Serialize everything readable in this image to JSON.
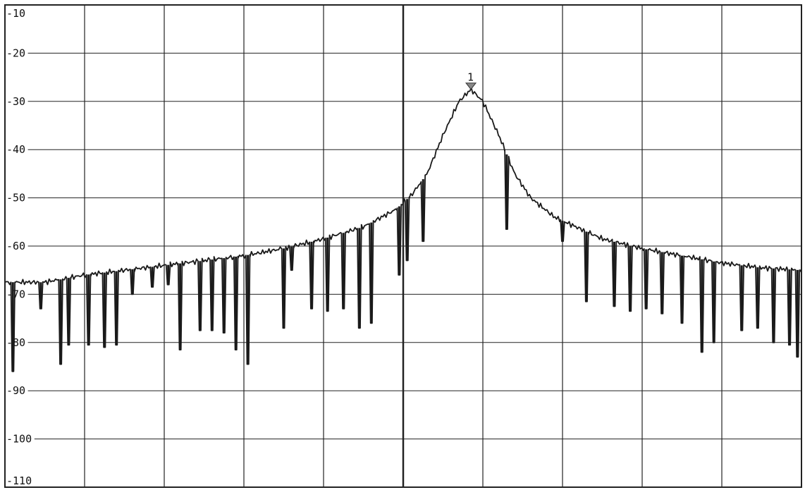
{
  "chart_data": {
    "type": "line",
    "title": "",
    "xlabel": "",
    "ylabel": "",
    "ylim": [
      -110,
      -10
    ],
    "yticks": [
      "-10",
      "-20",
      "-30",
      "-40",
      "-50",
      "-60",
      "-70",
      "-80",
      "-90",
      "-100",
      "-110"
    ],
    "x_divisions": 10,
    "grid": true,
    "colors": {
      "trace": "#1a1a1a",
      "grid": "#222222",
      "marker": "#888888",
      "background": "#ffffff"
    },
    "marker": {
      "label": "1",
      "x": 5.85,
      "y": -27.5
    },
    "trace_baseline": [
      [
        0.0,
        -67.5
      ],
      [
        0.5,
        -67.5
      ],
      [
        1.0,
        -66.0
      ],
      [
        1.5,
        -65.0
      ],
      [
        2.0,
        -64.0
      ],
      [
        2.5,
        -63.0
      ],
      [
        3.0,
        -62.0
      ],
      [
        3.5,
        -60.5
      ],
      [
        4.0,
        -58.5
      ],
      [
        4.5,
        -56.0
      ],
      [
        4.9,
        -52.5
      ],
      [
        5.1,
        -49.5
      ],
      [
        5.3,
        -45.0
      ],
      [
        5.5,
        -37.0
      ],
      [
        5.7,
        -30.0
      ],
      [
        5.85,
        -27.5
      ],
      [
        6.0,
        -30.0
      ],
      [
        6.2,
        -37.0
      ],
      [
        6.4,
        -45.0
      ],
      [
        6.6,
        -50.0
      ],
      [
        6.9,
        -54.0
      ],
      [
        7.5,
        -58.5
      ],
      [
        8.0,
        -60.5
      ],
      [
        8.5,
        -62.0
      ],
      [
        9.0,
        -63.5
      ],
      [
        9.5,
        -64.5
      ],
      [
        10.0,
        -65.0
      ]
    ],
    "trace_dips": [
      [
        0.1,
        -86.0
      ],
      [
        0.45,
        -73.0
      ],
      [
        0.7,
        -84.5
      ],
      [
        0.8,
        -80.5
      ],
      [
        1.05,
        -80.5
      ],
      [
        1.25,
        -81.0
      ],
      [
        1.4,
        -80.5
      ],
      [
        1.6,
        -70.0
      ],
      [
        1.85,
        -68.5
      ],
      [
        2.05,
        -68.0
      ],
      [
        2.2,
        -81.5
      ],
      [
        2.45,
        -77.5
      ],
      [
        2.6,
        -77.5
      ],
      [
        2.75,
        -78.0
      ],
      [
        2.9,
        -81.5
      ],
      [
        3.05,
        -84.5
      ],
      [
        3.5,
        -77.0
      ],
      [
        3.6,
        -65.0
      ],
      [
        3.85,
        -73.0
      ],
      [
        4.05,
        -73.5
      ],
      [
        4.25,
        -73.0
      ],
      [
        4.45,
        -77.0
      ],
      [
        4.6,
        -76.0
      ],
      [
        4.95,
        -66.0
      ],
      [
        5.05,
        -63.0
      ],
      [
        5.25,
        -59.0
      ],
      [
        6.3,
        -56.5
      ],
      [
        7.0,
        -59.0
      ],
      [
        7.3,
        -71.5
      ],
      [
        7.65,
        -72.5
      ],
      [
        7.85,
        -73.5
      ],
      [
        8.05,
        -73.0
      ],
      [
        8.25,
        -74.0
      ],
      [
        8.5,
        -76.0
      ],
      [
        8.75,
        -82.0
      ],
      [
        8.9,
        -80.0
      ],
      [
        9.25,
        -77.5
      ],
      [
        9.45,
        -77.0
      ],
      [
        9.65,
        -80.0
      ],
      [
        9.85,
        -80.5
      ],
      [
        9.95,
        -83.0
      ]
    ]
  }
}
